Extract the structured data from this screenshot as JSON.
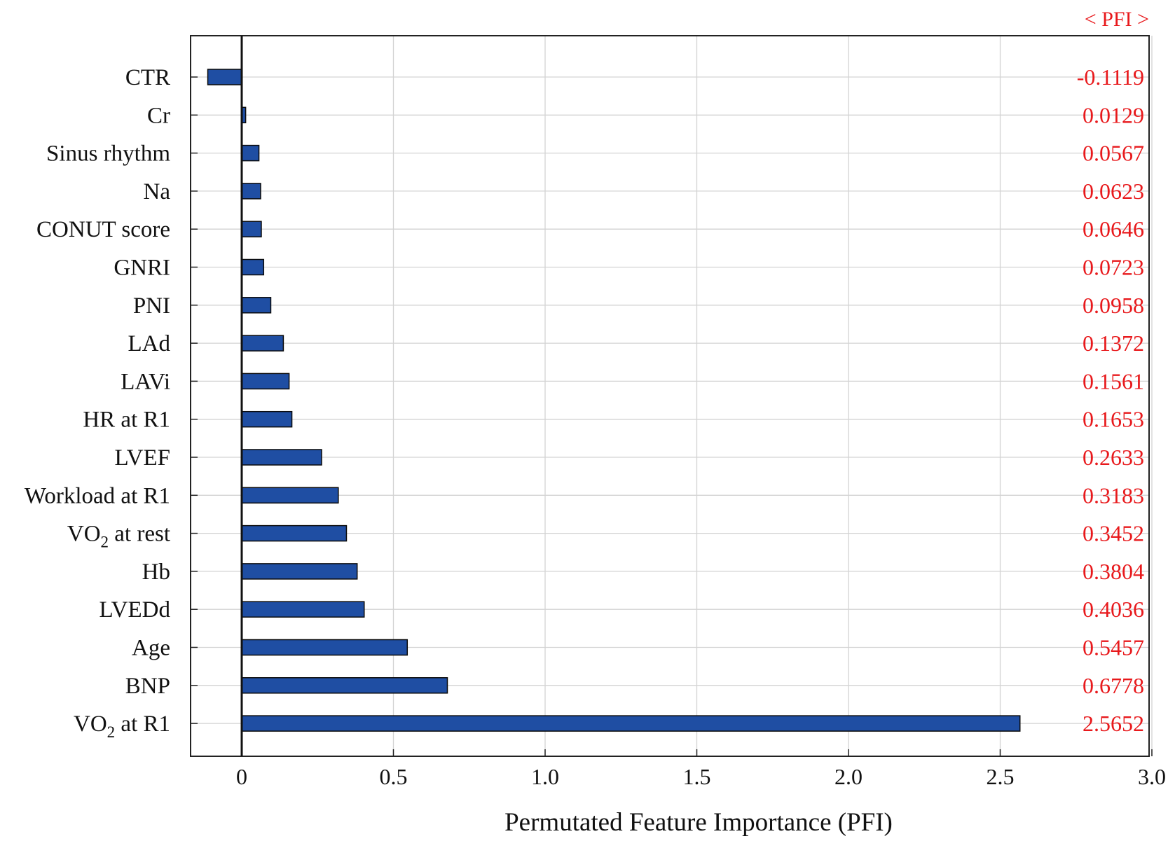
{
  "chart_data": {
    "type": "bar",
    "orientation": "horizontal",
    "title": "",
    "xlabel": "Permutated Feature Importance (PFI)",
    "ylabel": "",
    "xlim": [
      -0.17,
      3.0
    ],
    "xticks": [
      {
        "value": 0,
        "label": "0"
      },
      {
        "value": 0.5,
        "label": "0.5"
      },
      {
        "value": 1.0,
        "label": "1.0"
      },
      {
        "value": 1.5,
        "label": "1.5"
      },
      {
        "value": 2.0,
        "label": "2.0"
      },
      {
        "value": 2.5,
        "label": "2.5"
      },
      {
        "value": 3.0,
        "label": "3.0"
      }
    ],
    "grid": true,
    "legend": "none",
    "value_column_header": "< PFI >",
    "bar_color": "#1f4ea3",
    "value_label_color": "#e8191c",
    "categories": [
      {
        "name": "CTR"
      },
      {
        "name": "Cr"
      },
      {
        "name": "Sinus rhythm"
      },
      {
        "name": "Na"
      },
      {
        "name": "CONUT score"
      },
      {
        "name": "GNRI"
      },
      {
        "name": "PNI"
      },
      {
        "name": "LAd"
      },
      {
        "name": "LAVi"
      },
      {
        "name": "HR at R1"
      },
      {
        "name": "LVEF"
      },
      {
        "name": "Workload at R1"
      },
      {
        "name": "VO",
        "sub": "2",
        "suffix": " at rest"
      },
      {
        "name": "Hb"
      },
      {
        "name": "LVEDd"
      },
      {
        "name": "Age"
      },
      {
        "name": "BNP"
      },
      {
        "name": "VO",
        "sub": "2",
        "suffix": " at R1"
      }
    ],
    "values": [
      -0.1119,
      0.0129,
      0.0567,
      0.0623,
      0.0646,
      0.0723,
      0.0958,
      0.1372,
      0.1561,
      0.1653,
      0.2633,
      0.3183,
      0.3452,
      0.3804,
      0.4036,
      0.5457,
      0.6778,
      2.5652
    ],
    "value_labels": [
      "-0.1119",
      "0.0129",
      "0.0567",
      "0.0623",
      "0.0646",
      "0.0723",
      "0.0958",
      "0.1372",
      "0.1561",
      "0.1653",
      "0.2633",
      "0.3183",
      "0.3452",
      "0.3804",
      "0.4036",
      "0.5457",
      "0.6778",
      "2.5652"
    ]
  }
}
